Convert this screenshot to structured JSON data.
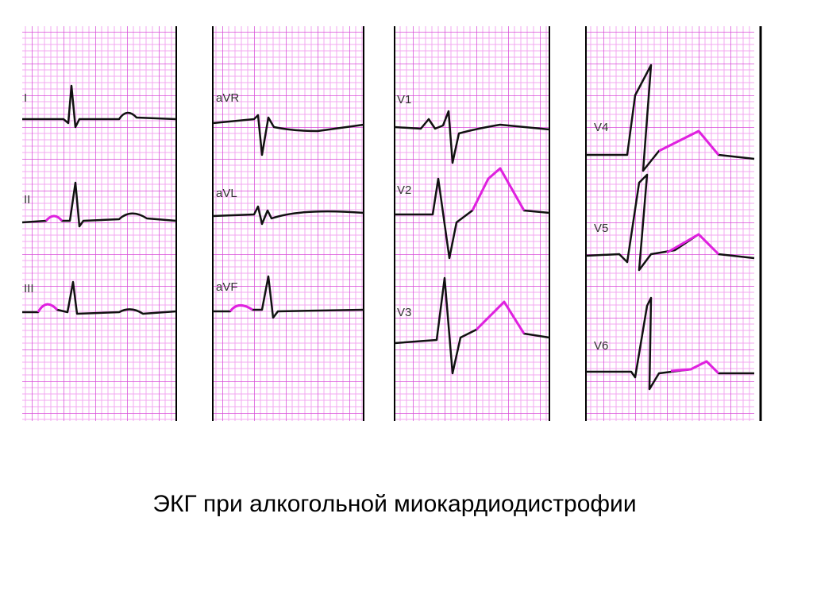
{
  "panels": [
    {
      "leads": [
        {
          "label": "I"
        },
        {
          "label": "II"
        },
        {
          "label": "III"
        }
      ]
    },
    {
      "leads": [
        {
          "label": "aVR"
        },
        {
          "label": "aVL"
        },
        {
          "label": "aVF"
        }
      ]
    },
    {
      "leads": [
        {
          "label": "V1"
        },
        {
          "label": "V2"
        },
        {
          "label": "V3"
        }
      ]
    },
    {
      "leads": [
        {
          "label": "V4"
        },
        {
          "label": "V5"
        },
        {
          "label": "V6"
        }
      ]
    }
  ],
  "caption": "ЭКГ при алкогольной миокардиодистрофии"
}
